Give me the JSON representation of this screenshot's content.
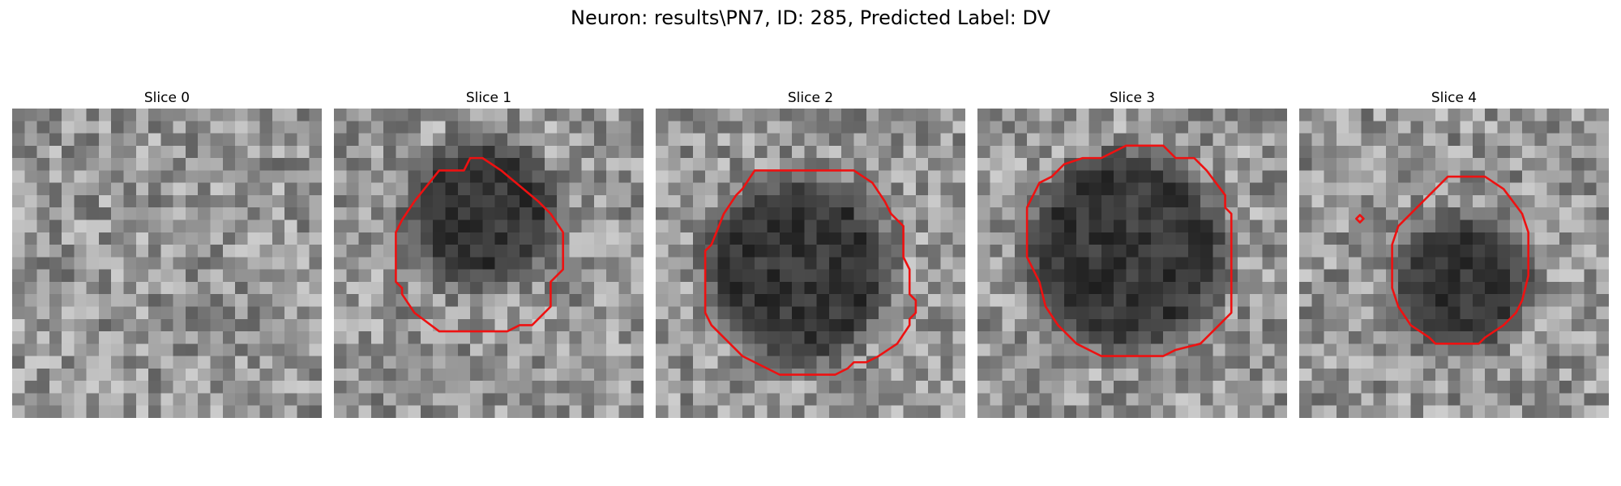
{
  "figure": {
    "title": "Neuron: results\\PN7, ID: 285, Predicted Label: DV"
  },
  "grid_size": 25,
  "contour_color": "#ee1111",
  "panels": [
    {
      "title": "Slice 0",
      "seed": 11,
      "blob": null,
      "contours": []
    },
    {
      "title": "Slice 1",
      "seed": 23,
      "blob": {
        "cx": 12.0,
        "cy": 8.5,
        "r": 6.0
      },
      "contours": [
        [
          [
            11.0,
            4.0
          ],
          [
            12.0,
            4.0
          ],
          [
            13.5,
            5.0
          ],
          [
            16.5,
            7.5
          ],
          [
            17.5,
            8.5
          ],
          [
            18.5,
            10.0
          ],
          [
            18.5,
            13.0
          ],
          [
            17.5,
            14.0
          ],
          [
            17.5,
            16.0
          ],
          [
            16.0,
            17.5
          ],
          [
            15.0,
            17.5
          ],
          [
            14.0,
            18.0
          ],
          [
            8.5,
            18.0
          ],
          [
            6.5,
            16.5
          ],
          [
            5.5,
            15.0
          ],
          [
            5.5,
            14.5
          ],
          [
            5.0,
            14.0
          ],
          [
            5.0,
            10.0
          ],
          [
            5.5,
            9.0
          ],
          [
            6.5,
            7.5
          ],
          [
            8.5,
            5.0
          ],
          [
            10.5,
            5.0
          ]
        ]
      ]
    },
    {
      "title": "Slice 2",
      "seed": 37,
      "blob": {
        "cx": 11.5,
        "cy": 13.0,
        "r": 7.5
      },
      "contours": [
        [
          [
            8.0,
            5.0
          ],
          [
            16.0,
            5.0
          ],
          [
            17.5,
            6.0
          ],
          [
            18.5,
            7.5
          ],
          [
            19.0,
            8.5
          ],
          [
            20.0,
            9.5
          ],
          [
            20.0,
            12.0
          ],
          [
            20.5,
            13.0
          ],
          [
            20.5,
            15.0
          ],
          [
            21.0,
            15.5
          ],
          [
            21.0,
            16.5
          ],
          [
            20.5,
            17.0
          ],
          [
            20.5,
            17.5
          ],
          [
            19.5,
            19.0
          ],
          [
            18.0,
            20.0
          ],
          [
            17.0,
            20.5
          ],
          [
            16.0,
            20.5
          ],
          [
            15.5,
            21.0
          ],
          [
            14.5,
            21.5
          ],
          [
            10.0,
            21.5
          ],
          [
            9.0,
            21.0
          ],
          [
            7.0,
            20.0
          ],
          [
            5.5,
            18.5
          ],
          [
            4.5,
            17.5
          ],
          [
            4.0,
            16.5
          ],
          [
            4.0,
            15.0
          ],
          [
            4.0,
            13.0
          ],
          [
            4.0,
            11.5
          ],
          [
            4.5,
            11.0
          ],
          [
            5.5,
            8.5
          ],
          [
            6.5,
            7.0
          ],
          [
            7.0,
            6.5
          ]
        ]
      ]
    },
    {
      "title": "Slice 3",
      "seed": 53,
      "blob": {
        "cx": 12.0,
        "cy": 11.5,
        "r": 8.0
      },
      "contours": [
        [
          [
            10.0,
            4.0
          ],
          [
            12.0,
            3.0
          ],
          [
            15.0,
            3.0
          ],
          [
            16.0,
            4.0
          ],
          [
            17.5,
            4.0
          ],
          [
            18.5,
            5.0
          ],
          [
            20.0,
            7.0
          ],
          [
            20.0,
            8.0
          ],
          [
            20.5,
            8.5
          ],
          [
            20.5,
            10.5
          ],
          [
            20.5,
            16.5
          ],
          [
            19.5,
            17.5
          ],
          [
            18.0,
            19.0
          ],
          [
            16.0,
            19.5
          ],
          [
            15.0,
            20.0
          ],
          [
            10.0,
            20.0
          ],
          [
            8.0,
            19.0
          ],
          [
            6.5,
            17.5
          ],
          [
            5.5,
            16.0
          ],
          [
            5.0,
            14.0
          ],
          [
            4.0,
            12.0
          ],
          [
            4.0,
            8.0
          ],
          [
            5.0,
            6.0
          ],
          [
            6.0,
            5.5
          ],
          [
            7.0,
            4.5
          ],
          [
            8.5,
            4.0
          ]
        ]
      ]
    },
    {
      "title": "Slice 4",
      "seed": 71,
      "blob": {
        "cx": 13.0,
        "cy": 14.0,
        "r": 5.5
      },
      "contours": [
        [
          [
            12.0,
            5.5
          ],
          [
            15.0,
            5.5
          ],
          [
            16.5,
            6.5
          ],
          [
            18.0,
            8.5
          ],
          [
            18.5,
            10.0
          ],
          [
            18.5,
            13.5
          ],
          [
            18.0,
            15.5
          ],
          [
            17.5,
            16.5
          ],
          [
            16.5,
            17.5
          ],
          [
            15.0,
            18.5
          ],
          [
            14.5,
            19.0
          ],
          [
            11.0,
            19.0
          ],
          [
            10.5,
            18.5
          ],
          [
            9.0,
            17.5
          ],
          [
            8.0,
            16.0
          ],
          [
            7.5,
            14.5
          ],
          [
            7.5,
            11.0
          ],
          [
            8.0,
            9.5
          ],
          [
            9.5,
            8.0
          ]
        ],
        [
          [
            4.9,
            8.6
          ],
          [
            5.2,
            8.9
          ],
          [
            4.9,
            9.2
          ],
          [
            4.6,
            8.9
          ]
        ]
      ]
    }
  ]
}
